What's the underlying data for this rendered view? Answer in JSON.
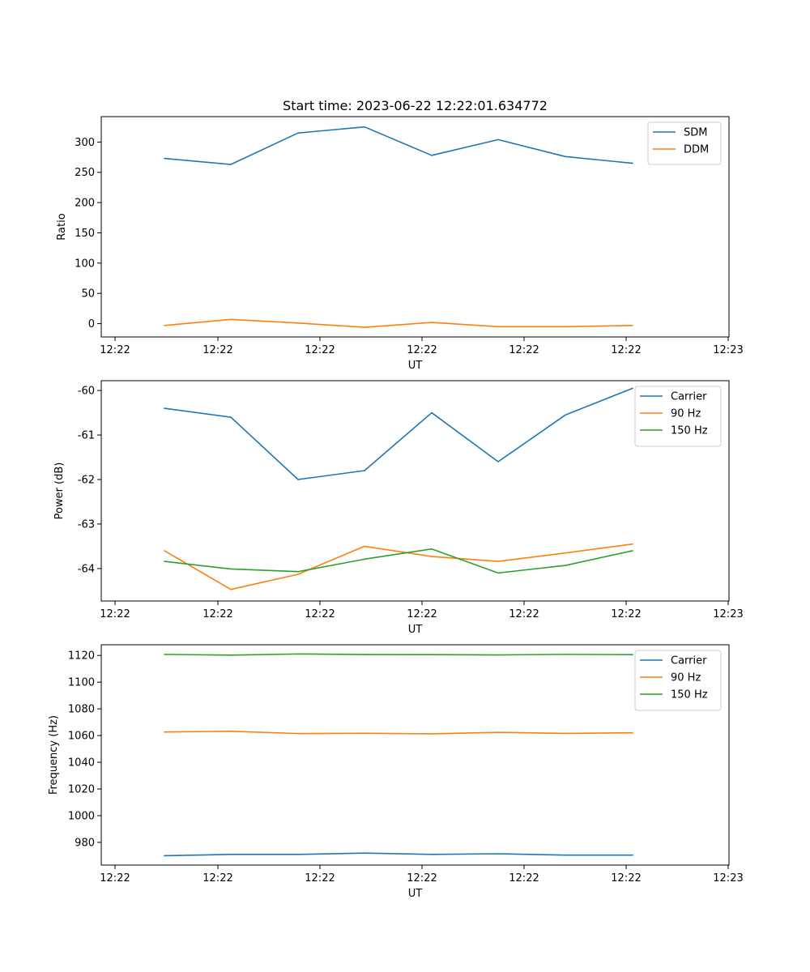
{
  "chart_data": [
    {
      "type": "line",
      "title": "Start time: 2023-06-22 12:22:01.634772",
      "xlabel": "UT",
      "ylabel": "Ratio",
      "x_tick_labels": [
        "12:22",
        "12:22",
        "12:22",
        "12:22",
        "12:22",
        "12:22",
        "12:23"
      ],
      "yticks": [
        0,
        50,
        100,
        150,
        200,
        250,
        300
      ],
      "ylim": [
        -22,
        342
      ],
      "legend": "top-right",
      "grid": false,
      "series": [
        {
          "name": "SDM",
          "color": "#1f77b4",
          "values": [
            273,
            263,
            315,
            325,
            278,
            304,
            276,
            265
          ]
        },
        {
          "name": "DDM",
          "color": "#ff7f0e",
          "values": [
            -3,
            7,
            1,
            -6,
            2,
            -5,
            -5,
            -3
          ]
        }
      ]
    },
    {
      "type": "line",
      "title": "",
      "xlabel": "UT",
      "ylabel": "Power (dB)",
      "x_tick_labels": [
        "12:22",
        "12:22",
        "12:22",
        "12:22",
        "12:22",
        "12:22",
        "12:23"
      ],
      "yticks": [
        -64,
        -63,
        -62,
        -61,
        -60
      ],
      "ylim": [
        -64.73,
        -59.78
      ],
      "legend": "top-right",
      "grid": false,
      "series": [
        {
          "name": "Carrier",
          "color": "#1f77b4",
          "values": [
            -60.4,
            -60.6,
            -62.0,
            -61.8,
            -60.5,
            -61.6,
            -60.55,
            -59.95
          ]
        },
        {
          "name": "90 Hz",
          "color": "#ff7f0e",
          "values": [
            -63.6,
            -64.47,
            -64.13,
            -63.5,
            -63.73,
            -63.84,
            -63.65,
            -63.45
          ]
        },
        {
          "name": "150 Hz",
          "color": "#2ca02c",
          "values": [
            -63.84,
            -64.01,
            -64.07,
            -63.79,
            -63.56,
            -64.1,
            -63.93,
            -63.6
          ]
        }
      ]
    },
    {
      "type": "line",
      "title": "",
      "xlabel": "UT",
      "ylabel": "Frequency (Hz)",
      "x_tick_labels": [
        "12:22",
        "12:22",
        "12:22",
        "12:22",
        "12:22",
        "12:22",
        "12:23"
      ],
      "yticks": [
        980,
        1000,
        1020,
        1040,
        1060,
        1080,
        1100,
        1120
      ],
      "ylim": [
        963,
        1128
      ],
      "legend": "top-right",
      "grid": false,
      "series": [
        {
          "name": "Carrier",
          "color": "#1f77b4",
          "values": [
            970,
            971,
            971,
            972,
            971,
            971.5,
            970.5,
            970.5
          ]
        },
        {
          "name": "90 Hz",
          "color": "#ff7f0e",
          "values": [
            1062.7,
            1063.2,
            1061.5,
            1061.7,
            1061.3,
            1062.4,
            1061.6,
            1062.1
          ]
        },
        {
          "name": "150 Hz",
          "color": "#2ca02c",
          "values": [
            1120.8,
            1120.2,
            1121.1,
            1120.7,
            1120.6,
            1120.4,
            1120.8,
            1120.6
          ]
        }
      ]
    }
  ]
}
